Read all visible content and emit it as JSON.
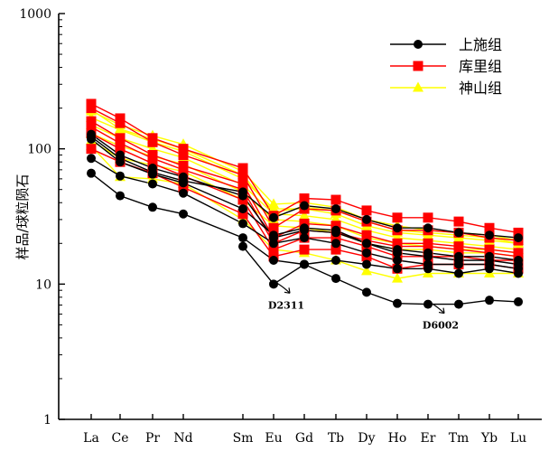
{
  "chart_data": {
    "type": "line",
    "title": "",
    "xlabel": "",
    "ylabel": "样品/球粒陨石",
    "yscale": "log",
    "ylim": [
      1,
      1000
    ],
    "yticks": [
      "1",
      "10",
      "100",
      "1000"
    ],
    "categories": [
      "La",
      "Ce",
      "Pr",
      "Nd",
      "Sm",
      "Eu",
      "Gd",
      "Tb",
      "Dy",
      "Ho",
      "Er",
      "Tm",
      "Yb",
      "Lu"
    ],
    "legend_position": "top-right",
    "series": [
      {
        "name": "上施组",
        "color": "#000000",
        "marker": "circle",
        "lines": [
          [
            128,
            90,
            72,
            62,
            45,
            22,
            25,
            24,
            20,
            18,
            17,
            16,
            16,
            15
          ],
          [
            118,
            80,
            65,
            56,
            36,
            23,
            26,
            25,
            20,
            17,
            16,
            15,
            15,
            14
          ],
          [
            85,
            63,
            55,
            47,
            28,
            20,
            22,
            20,
            17,
            15,
            14,
            14,
            14,
            13
          ],
          [
            66,
            45,
            37,
            33,
            22,
            15,
            14,
            15,
            14,
            13,
            13,
            12,
            13,
            12
          ],
          [
            null,
            null,
            null,
            null,
            19,
            10,
            14,
            11,
            8.7,
            7.2,
            7.1,
            7.1,
            7.6,
            7.4
          ],
          [
            123,
            85,
            67,
            58,
            48,
            31,
            38,
            36,
            30,
            26,
            26,
            24,
            23,
            22
          ]
        ]
      },
      {
        "name": "库里组",
        "color": "#ff0000",
        "marker": "square",
        "lines": [
          [
            215,
            168,
            120,
            100,
            72,
            32,
            43,
            42,
            35,
            31,
            31,
            29,
            26,
            24
          ],
          [
            200,
            155,
            112,
            90,
            64,
            26,
            36,
            35,
            29,
            25,
            25,
            24,
            22,
            21
          ],
          [
            160,
            120,
            90,
            75,
            55,
            22,
            28,
            27,
            23,
            20,
            20,
            19,
            18,
            17
          ],
          [
            130,
            100,
            78,
            63,
            42,
            18,
            22,
            22,
            19,
            16,
            16,
            16,
            15,
            15
          ],
          [
            100,
            80,
            66,
            52,
            33,
            16,
            18,
            18,
            16,
            13,
            14,
            14,
            14,
            13
          ],
          [
            145,
            110,
            85,
            70,
            50,
            20,
            25,
            24,
            21,
            19,
            19,
            18,
            17,
            16
          ]
        ]
      },
      {
        "name": "神山组",
        "color": "#ffff00",
        "marker": "triangle",
        "lines": [
          [
            190,
            150,
            125,
            108,
            68,
            39,
            40,
            37,
            30,
            27,
            25,
            24,
            23,
            21
          ],
          [
            170,
            138,
            112,
            96,
            60,
            36,
            36,
            33,
            27,
            24,
            23,
            22,
            21,
            20
          ],
          [
            150,
            120,
            100,
            86,
            54,
            33,
            32,
            30,
            25,
            22,
            21,
            20,
            19,
            18
          ],
          [
            130,
            105,
            88,
            77,
            48,
            30,
            29,
            27,
            22,
            20,
            19,
            18,
            18,
            17
          ],
          [
            115,
            85,
            76,
            68,
            42,
            27,
            26,
            24,
            20,
            18,
            18,
            17,
            17,
            16
          ],
          [
            105,
            62,
            60,
            55,
            30,
            18,
            17,
            15,
            12.5,
            11,
            12,
            12,
            12,
            12
          ],
          [
            195,
            140,
            118,
            100,
            64,
            34,
            37,
            35,
            29,
            25,
            24,
            23,
            22,
            20
          ]
        ]
      }
    ],
    "annotations": [
      {
        "text": "D2311",
        "at_category": "Eu",
        "value": 10
      },
      {
        "text": "D6002",
        "at_category": "Er",
        "value": 7.1
      }
    ]
  }
}
